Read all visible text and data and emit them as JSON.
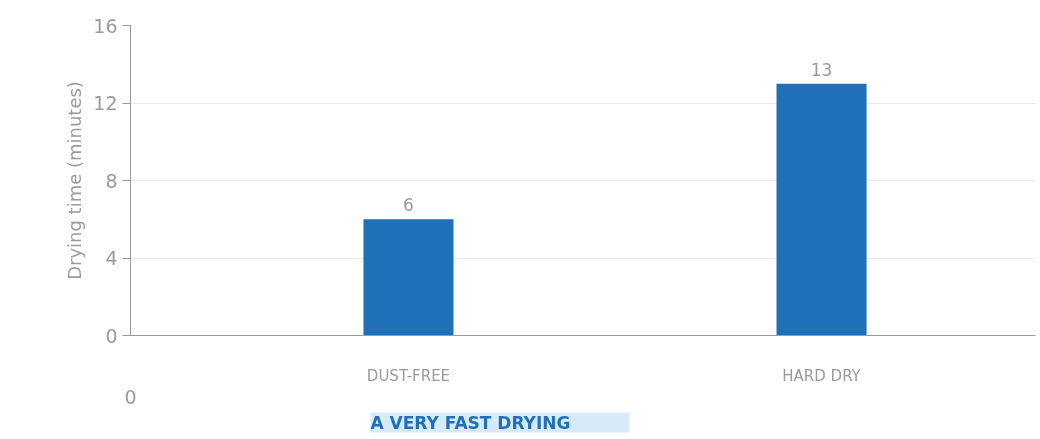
{
  "chart_data": {
    "type": "bar",
    "title": "A VERY FAST DRYING",
    "ylabel": "Drying time (minutes)",
    "categories": [
      "DUST-FREE",
      "HARD DRY"
    ],
    "values": [
      6,
      13
    ],
    "color": "#1f70b8",
    "data_labels": true,
    "ylim": [
      0,
      16
    ],
    "yticks": [
      0,
      4,
      8,
      12,
      16
    ],
    "grid": "y",
    "annotations": [
      "0"
    ]
  }
}
